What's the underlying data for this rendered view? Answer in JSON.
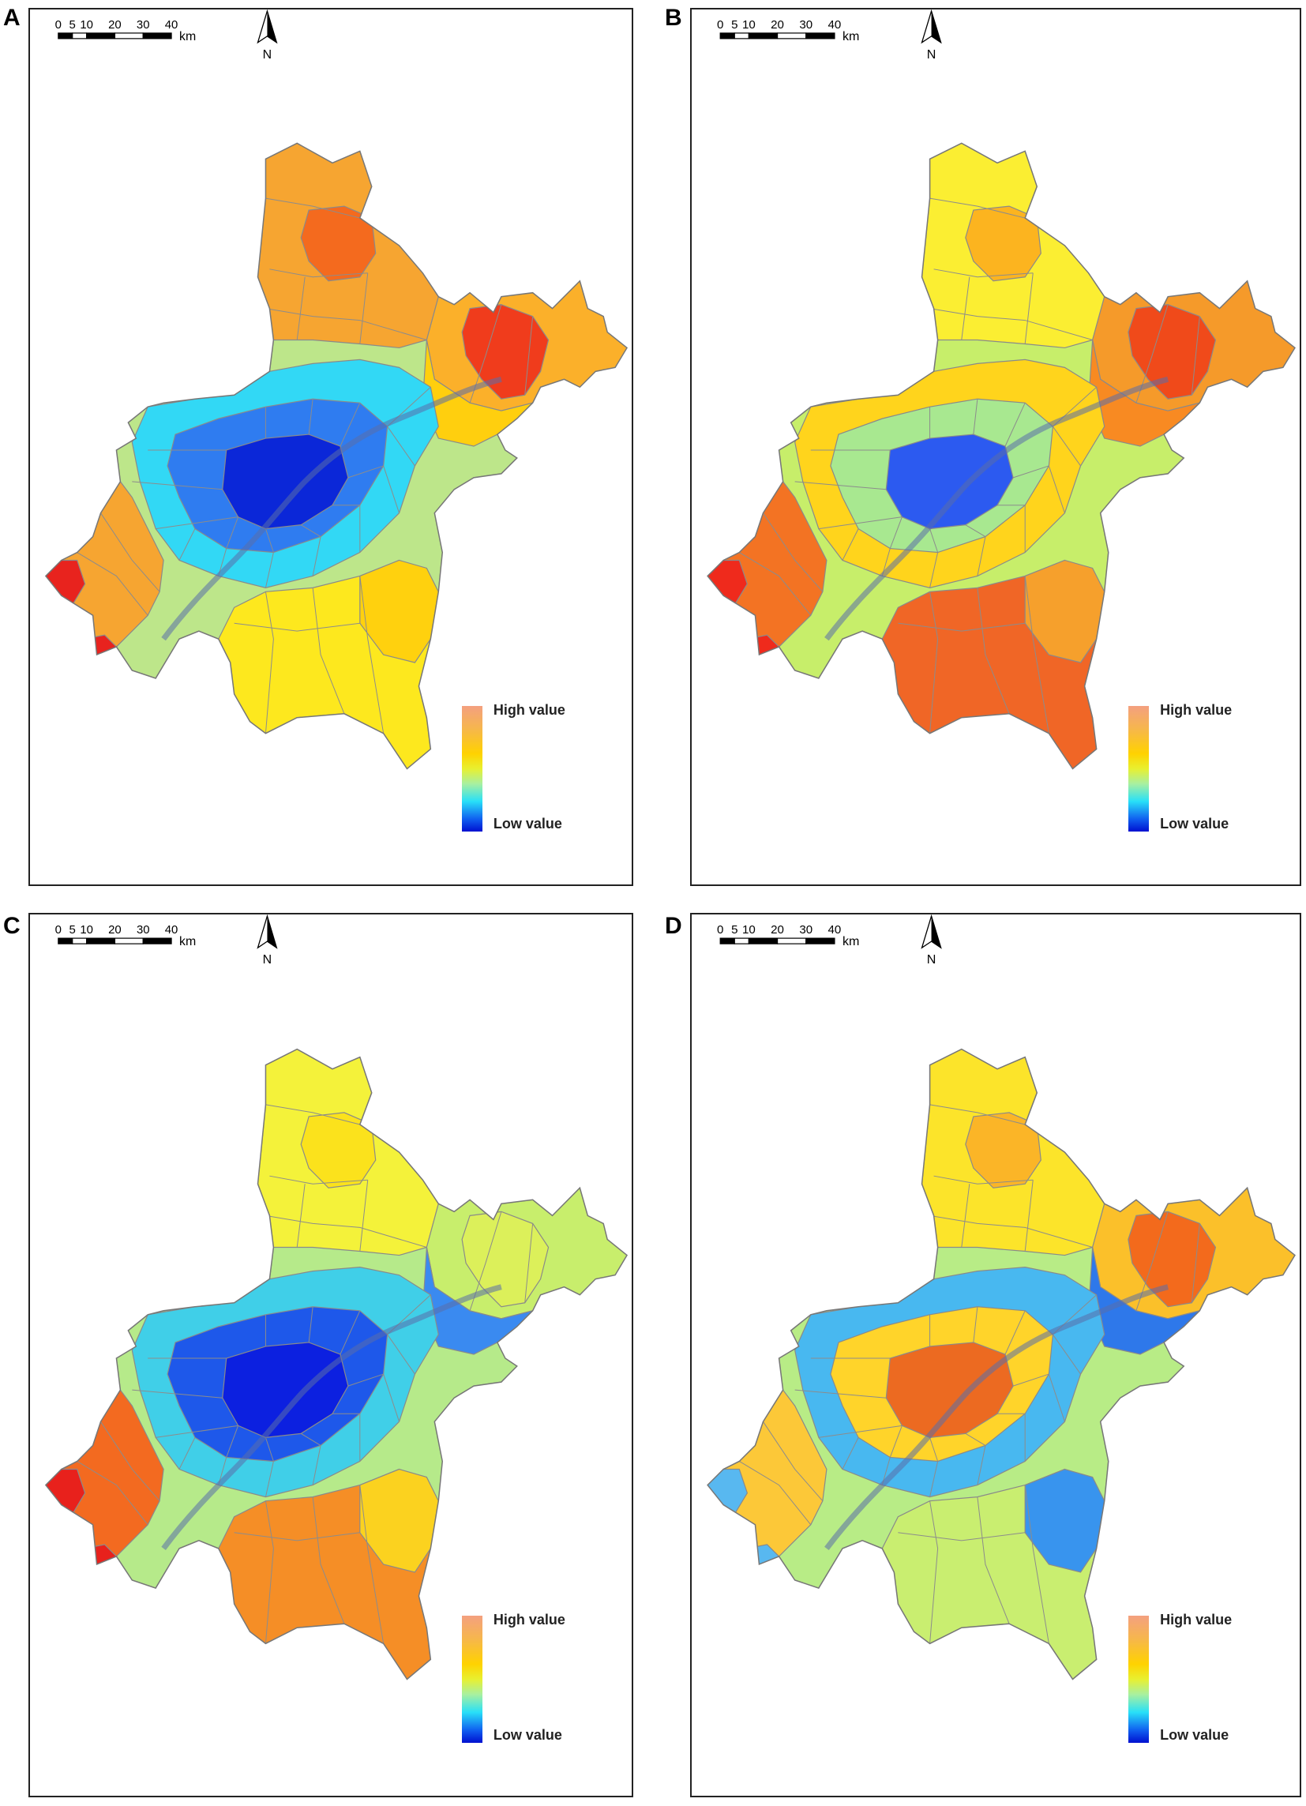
{
  "figure": {
    "panels": [
      {
        "label": "A",
        "legend": {
          "high": "High value",
          "low": "Low value"
        },
        "scalebar": {
          "ticks": [
            "0",
            "5",
            "10",
            "20",
            "30",
            "40"
          ],
          "unit": "km"
        },
        "north": "N",
        "zones": {
          "north": "#f6a531",
          "north_core": "#f46a1e",
          "northeast": "#f03c1c",
          "northeast_edge": "#fbb02a",
          "east": "#ffcf0e",
          "center": "#0b27d8",
          "center_ring": "#2f7cf0",
          "mid_ring": "#32d8f5",
          "outer_ring": "#bde68a",
          "west": "#f6a531",
          "west_tip": "#e8231e",
          "south": "#fde81e",
          "south_east": "#ffd10e"
        }
      },
      {
        "label": "B",
        "legend": {
          "high": "High value",
          "low": "Low value"
        },
        "scalebar": {
          "ticks": [
            "0",
            "5",
            "10",
            "20",
            "30",
            "40"
          ],
          "unit": "km"
        },
        "north": "N",
        "zones": {
          "north": "#fbee32",
          "north_core": "#fcb41f",
          "northeast": "#f04a1a",
          "northeast_edge": "#f59a2a",
          "east": "#f88a22",
          "center": "#2c5af0",
          "center_ring": "#a8e890",
          "mid_ring": "#ffd41c",
          "outer_ring": "#c7ee6a",
          "west": "#f37323",
          "west_tip": "#ef2a1c",
          "south": "#f06626",
          "south_east": "#f6a02c"
        }
      },
      {
        "label": "C",
        "legend": {
          "high": "High value",
          "low": "Low value"
        },
        "scalebar": {
          "ticks": [
            "0",
            "5",
            "10",
            "20",
            "30",
            "40"
          ],
          "unit": "km"
        },
        "north": "N",
        "zones": {
          "north": "#f4f23a",
          "north_core": "#fbe21c",
          "northeast": "#dcf05a",
          "northeast_edge": "#c8ee6c",
          "east": "#3a8af0",
          "center": "#0c20e0",
          "center_ring": "#1e58ea",
          "mid_ring": "#40cfe8",
          "outer_ring": "#b6ea8a",
          "west": "#f36a20",
          "west_tip": "#e8211c",
          "south": "#f58e26",
          "south_east": "#fbd21f"
        }
      },
      {
        "label": "D",
        "legend": {
          "high": "High value",
          "low": "Low value"
        },
        "scalebar": {
          "ticks": [
            "0",
            "5",
            "10",
            "20",
            "30",
            "40"
          ],
          "unit": "km"
        },
        "north": "N",
        "zones": {
          "north": "#fce42a",
          "north_core": "#fbb527",
          "northeast": "#f36a1c",
          "northeast_edge": "#fbc02a",
          "east": "#2e78ea",
          "center": "#ec6a21",
          "center_ring": "#ffd42a",
          "mid_ring": "#48b8f0",
          "outer_ring": "#b8ec86",
          "west": "#fcc838",
          "west_tip": "#58b8f0",
          "south": "#c9ee70",
          "south_east": "#3894ee"
        }
      }
    ]
  }
}
